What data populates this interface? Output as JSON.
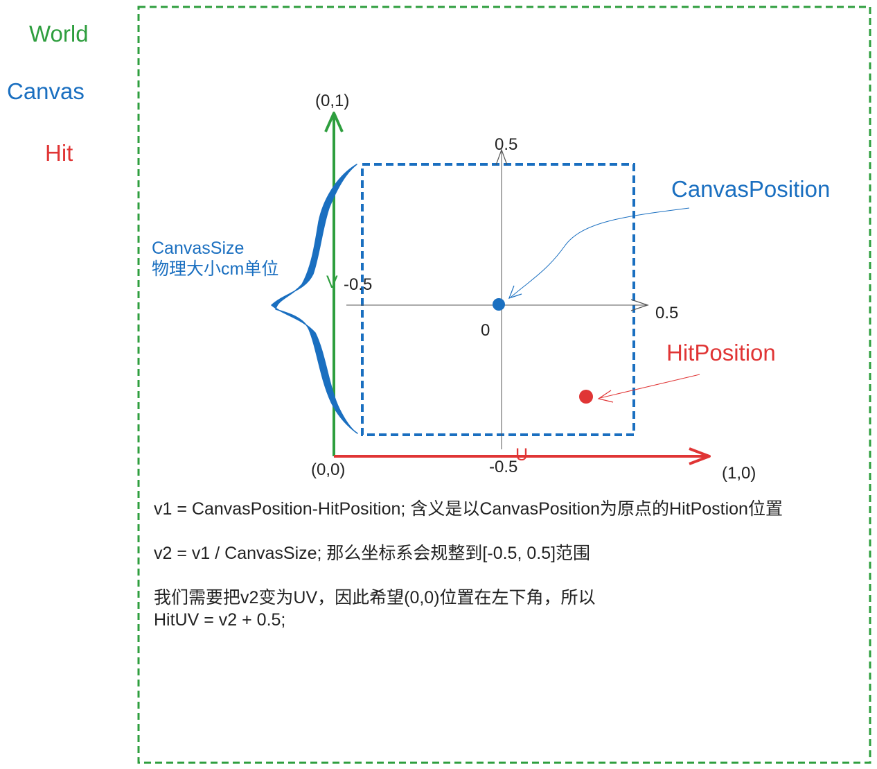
{
  "legend": [
    {
      "label": "World",
      "color": "#2e9e3e"
    },
    {
      "label": "Canvas",
      "color": "#1a6fc0"
    },
    {
      "label": "Hit",
      "color": "#e03535"
    }
  ],
  "colors": {
    "world": "#2e9e3e",
    "canvas": "#1a6fc0",
    "hit": "#e03535",
    "axis": "#555555",
    "text": "#222222"
  },
  "uv_axes": {
    "v_label": "V",
    "u_label": "U",
    "origin_label": "(0,0)",
    "v_end_label": "(0,1)",
    "u_end_label": "(1,0)"
  },
  "canvas_axes": {
    "top_label": "0.5",
    "bottom_label": "-0.5",
    "left_label": "-0.5",
    "right_label": "0.5",
    "center_label": "0"
  },
  "annotations": {
    "canvas_position": "CanvasPosition",
    "hit_position": "HitPosition",
    "canvas_size_line1": "CanvasSize",
    "canvas_size_line2": "物理大小cm单位"
  },
  "formulas": {
    "line1": "v1 = CanvasPosition-HitPosition; 含义是以CanvasPosition为原点的HitPostion位置",
    "line2": "v2 = v1 / CanvasSize; 那么坐标系会规整到[-0.5, 0.5]范围",
    "line3": "我们需要把v2变为UV，因此希望(0,0)位置在左下角，所以",
    "line4": "HitUV =  v2 + 0.5;"
  }
}
